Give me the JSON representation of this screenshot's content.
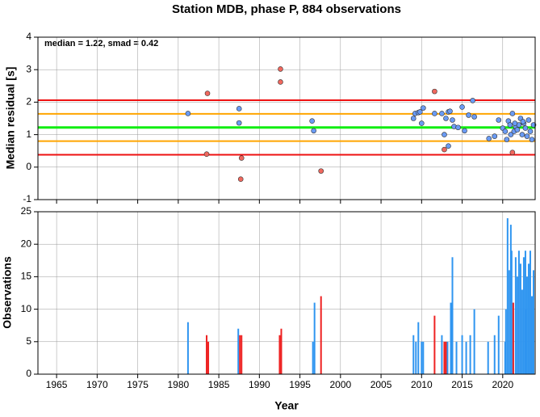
{
  "chart_data": [
    {
      "type": "scatter",
      "title": "Station MDB, phase P, 884 observations",
      "ylabel": "Median residual [s]",
      "annotation": "median = 1.22, smad = 0.42",
      "xlim": [
        1962.7,
        2024
      ],
      "ylim": [
        -1,
        4
      ],
      "xticks": [
        1965,
        1970,
        1975,
        1980,
        1985,
        1990,
        1995,
        2000,
        2005,
        2010,
        2015,
        2020
      ],
      "yticks": [
        -1,
        0,
        1,
        2,
        3,
        4
      ],
      "grid": true,
      "reference_lines": [
        {
          "value": 2.06,
          "color": "#ee1111"
        },
        {
          "value": 1.64,
          "color": "#ffa500"
        },
        {
          "value": 1.22,
          "color": "#11ee11"
        },
        {
          "value": 0.8,
          "color": "#ffa500"
        },
        {
          "value": 0.38,
          "color": "#ee1111"
        }
      ],
      "series": [
        {
          "color": "#6a9bf4",
          "x": [
            1981.2,
            1987.5,
            1987.5,
            1996.5,
            1996.7,
            2009,
            2009.2,
            2009.6,
            2009.8,
            2010.2,
            2010,
            2011.6,
            2012.5,
            2012.8,
            2013,
            2013.3,
            2013.5,
            2013.8,
            2013.3,
            2014,
            2014.5,
            2015,
            2015.3,
            2015.8,
            2016.3,
            2016.5,
            2018.3,
            2019,
            2019.5,
            2020,
            2020.3,
            2020.5,
            2020.7,
            2020.9,
            2021,
            2021.2,
            2021.4,
            2021.6,
            2021.8,
            2022,
            2022.2,
            2022.4,
            2022.6,
            2022.8,
            2023,
            2023.2,
            2023.4,
            2023.6,
            2023.8,
            2022.5,
            2021.5
          ],
          "values": [
            1.65,
            1.8,
            1.36,
            1.42,
            1.12,
            1.5,
            1.65,
            1.68,
            1.7,
            1.82,
            1.35,
            1.65,
            1.65,
            1.0,
            1.5,
            1.7,
            1.72,
            1.45,
            0.65,
            1.25,
            1.22,
            1.85,
            1.12,
            1.6,
            2.05,
            1.55,
            0.88,
            0.95,
            1.45,
            1.2,
            1.1,
            0.85,
            1.42,
            1.3,
            1.0,
            1.65,
            1.1,
            1.25,
            1.15,
            1.3,
            1.5,
            1.0,
            1.35,
            1.2,
            0.95,
            1.45,
            1.1,
            0.85,
            1.3,
            1.4,
            1.35
          ]
        },
        {
          "color": "#f0685e",
          "x": [
            1983.6,
            1983.5,
            1987.8,
            1987.7,
            1992.6,
            1992.6,
            1997.6,
            2011.6,
            2012.8,
            2021.2
          ],
          "values": [
            2.27,
            0.4,
            0.28,
            -0.37,
            3.02,
            2.62,
            -0.12,
            2.33,
            0.54,
            0.45
          ]
        }
      ]
    },
    {
      "type": "bar",
      "ylabel": "Observations",
      "xlabel": "Year",
      "xlim": [
        1962.7,
        2024
      ],
      "ylim": [
        0,
        25
      ],
      "xticks": [
        1965,
        1970,
        1975,
        1980,
        1985,
        1990,
        1995,
        2000,
        2005,
        2010,
        2015,
        2020
      ],
      "yticks": [
        0,
        5,
        10,
        15,
        20,
        25
      ],
      "grid": true,
      "series": [
        {
          "color": "#2f95f0",
          "x": [
            1981.2,
            1987.4,
            1996.6,
            1996.8,
            2009,
            2009.3,
            2009.6,
            2010,
            2010.2,
            2012.5,
            2013.2,
            2013.6,
            2013.8,
            2014.3,
            2015,
            2015.5,
            2016,
            2016.5,
            2018.2,
            2019,
            2019.5,
            2020.3,
            2020.6,
            2020.8,
            2021,
            2021.1,
            2021.3,
            2021.6,
            2021.8,
            2022,
            2022.2,
            2022.4,
            2022.6,
            2022.8,
            2023,
            2023.2,
            2023.4,
            2023.6,
            2023.8,
            2020.4,
            2022.9
          ],
          "values": [
            8,
            7,
            5,
            11,
            6,
            5,
            8,
            5,
            5,
            6,
            5,
            11,
            18,
            5,
            6,
            5,
            6,
            10,
            5,
            6,
            9,
            5,
            24,
            16,
            23,
            19,
            11,
            18,
            15,
            19,
            17,
            13,
            18,
            19,
            15,
            17,
            19,
            12,
            16,
            10,
            10
          ]
        },
        {
          "color": "#ee2222",
          "x": [
            1983.5,
            1983.7,
            1987.6,
            1987.8,
            1992.5,
            1992.7,
            1997.6,
            2011.6,
            2012.8,
            2013,
            2021.3
          ],
          "values": [
            6,
            5,
            6,
            6,
            6,
            7,
            12,
            9,
            5,
            5,
            11
          ]
        }
      ]
    }
  ]
}
